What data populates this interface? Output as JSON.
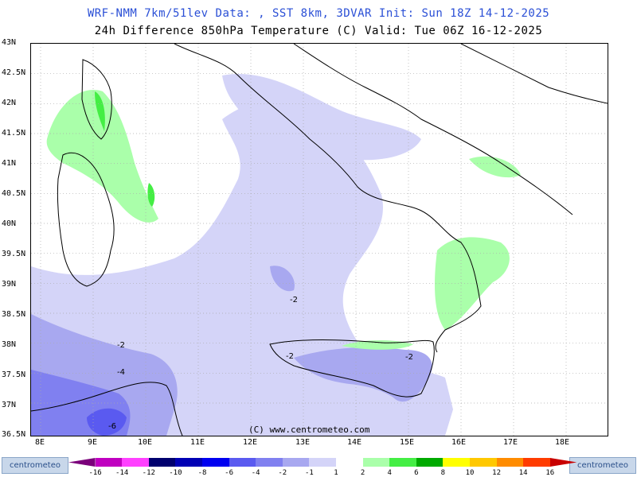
{
  "header": {
    "line1": "WRF-NMM 7km/51lev   Data: , SST 8km, 3DVAR   Init: Sun 18Z 14-12-2025",
    "line2": "24h Difference 850hPa Temperature (C)  Valid: Tue 06Z 16-12-2025"
  },
  "axes": {
    "lat_labels": [
      "43N",
      "42.5N",
      "42N",
      "41.5N",
      "41N",
      "40.5N",
      "40N",
      "39.5N",
      "39N",
      "38.5N",
      "38N",
      "37.5N",
      "37N",
      "36.5N"
    ],
    "lon_labels": [
      "8E",
      "9E",
      "10E",
      "11E",
      "12E",
      "13E",
      "14E",
      "15E",
      "16E",
      "17E",
      "18E"
    ]
  },
  "contour_labels": [
    "-2",
    "-2",
    "-2",
    "-2",
    "-4",
    "-6"
  ],
  "copyright": "(C) www.centrometeo.com",
  "brand": {
    "left": "centrometeo",
    "right": "centrometeo"
  },
  "colorbar": {
    "labels": [
      "-16",
      "-14",
      "-12",
      "-10",
      "-8",
      "-6",
      "-4",
      "-2",
      "-1",
      "1",
      "2",
      "4",
      "6",
      "8",
      "10",
      "12",
      "14",
      "16"
    ],
    "colors": [
      "#7a007a",
      "#c000c0",
      "#ff40ff",
      "#00006e",
      "#0000b4",
      "#0000f0",
      "#5a5af0",
      "#8080f0",
      "#a8a8f0",
      "#d4d4f8",
      "#ffffff",
      "#aaffaa",
      "#44ee44",
      "#00aa00",
      "#ffff00",
      "#ffc800",
      "#ff8c00",
      "#ff3c00",
      "#c80000"
    ]
  },
  "colors": {
    "accent": "#2a4fd6"
  }
}
